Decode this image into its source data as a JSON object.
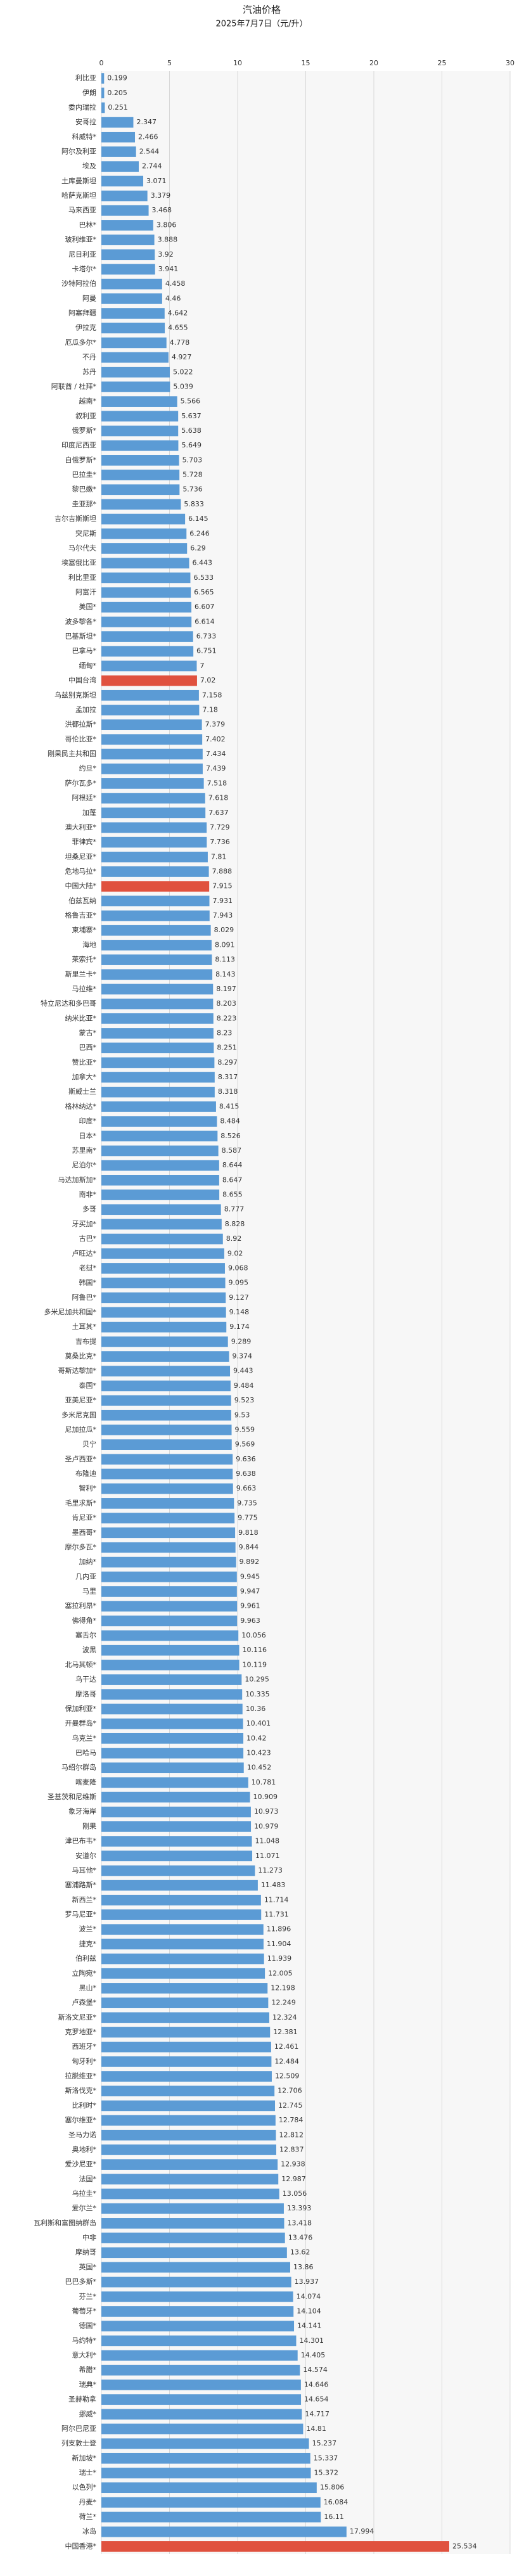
{
  "chart_data": {
    "type": "barh",
    "title": "汽油价格",
    "subtitle": "2025年7月7日（元/升）",
    "categories": [
      "利比亚",
      "伊朗",
      "委内瑞拉",
      "安哥拉",
      "科威特*",
      "阿尔及利亚",
      "埃及",
      "土库曼斯坦",
      "哈萨克斯坦",
      "马来西亚",
      "巴林*",
      "玻利维亚*",
      "尼日利亚",
      "卡塔尔*",
      "沙特阿拉伯",
      "阿曼",
      "阿塞拜疆",
      "伊拉克",
      "厄瓜多尔*",
      "不丹",
      "苏丹",
      "阿联酋 / 杜拜*",
      "越南*",
      "叙利亚",
      "俄罗斯*",
      "印度尼西亚",
      "白俄罗斯*",
      "巴拉圭*",
      "黎巴嫩*",
      "圭亚那*",
      "吉尔吉斯斯坦",
      "突尼斯",
      "马尔代夫",
      "埃塞俄比亚",
      "利比里亚",
      "阿富汗",
      "美国*",
      "波多黎各*",
      "巴基斯坦*",
      "巴拿马*",
      "缅甸*",
      "中国台湾",
      "乌兹别克斯坦",
      "孟加拉",
      "洪都拉斯*",
      "哥伦比亚*",
      "刚果民主共和国",
      "约旦*",
      "萨尔瓦多*",
      "阿根廷*",
      "加蓬",
      "澳大利亚*",
      "菲律宾*",
      "坦桑尼亚*",
      "危地马拉*",
      "中国大陆*",
      "伯兹瓦纳",
      "格鲁吉亚*",
      "柬埔寨*",
      "海地",
      "莱索托*",
      "斯里兰卡*",
      "马拉维*",
      "特立尼达和多巴哥",
      "纳米比亚*",
      "蒙古*",
      "巴西*",
      "赞比亚*",
      "加拿大*",
      "斯威士兰",
      "格林纳达*",
      "印度*",
      "日本*",
      "苏里南*",
      "尼泊尔*",
      "马达加斯加*",
      "南非*",
      "多哥",
      "牙买加*",
      "古巴*",
      "卢旺达*",
      "老挝*",
      "韩国*",
      "阿鲁巴*",
      "多米尼加共和国*",
      "土耳其*",
      "吉布提",
      "莫桑比克*",
      "哥斯达黎加*",
      "泰国*",
      "亚美尼亚*",
      "多米尼克国",
      "尼加拉瓜*",
      "贝宁",
      "圣卢西亚*",
      "布隆迪",
      "智利*",
      "毛里求斯*",
      "肯尼亚*",
      "墨西哥*",
      "摩尔多瓦*",
      "加纳*",
      "几内亚",
      "马里",
      "塞拉利昂*",
      "佛得角*",
      "塞舌尔",
      "波黑",
      "北马其顿*",
      "乌干达",
      "摩洛哥",
      "保加利亚*",
      "开曼群岛*",
      "乌克兰*",
      "巴哈马",
      "马绍尔群岛",
      "喀麦隆",
      "圣基茨和尼维斯",
      "象牙海岸",
      "刚果",
      "津巴布韦*",
      "安道尔",
      "马耳他*",
      "塞浦路斯*",
      "新西兰*",
      "罗马尼亚*",
      "波兰*",
      "捷克*",
      "伯利兹",
      "立陶宛*",
      "黑山*",
      "卢森堡*",
      "斯洛文尼亚*",
      "克罗地亚*",
      "西班牙*",
      "匈牙利*",
      "拉脱维亚*",
      "斯洛伐克*",
      "比利时*",
      "塞尔维亚*",
      "圣马力诺",
      "奥地利*",
      "爱沙尼亚*",
      "法国*",
      "乌拉圭*",
      "爱尔兰*",
      "瓦利斯和富图纳群岛",
      "中非",
      "摩纳哥",
      "英国*",
      "巴巴多斯*",
      "芬兰*",
      "葡萄牙*",
      "德国*",
      "马约特*",
      "意大利*",
      "希腊*",
      "瑞典*",
      "圣赫勒拿",
      "挪威*",
      "阿尔巴尼亚",
      "列支敦士登",
      "新加坡*",
      "瑞士*",
      "以色列*",
      "丹麦*",
      "荷兰*",
      "冰岛",
      "中国香港*"
    ],
    "values": [
      0.199,
      0.205,
      0.251,
      2.347,
      2.466,
      2.544,
      2.744,
      3.071,
      3.379,
      3.468,
      3.806,
      3.888,
      3.92,
      3.941,
      4.458,
      4.46,
      4.642,
      4.655,
      4.778,
      4.927,
      5.022,
      5.039,
      5.566,
      5.637,
      5.638,
      5.649,
      5.703,
      5.728,
      5.736,
      5.833,
      6.145,
      6.246,
      6.29,
      6.443,
      6.533,
      6.565,
      6.607,
      6.614,
      6.733,
      6.751,
      7,
      7.02,
      7.158,
      7.18,
      7.379,
      7.402,
      7.434,
      7.439,
      7.518,
      7.618,
      7.637,
      7.729,
      7.736,
      7.81,
      7.888,
      7.915,
      7.931,
      7.943,
      8.029,
      8.091,
      8.113,
      8.143,
      8.197,
      8.203,
      8.223,
      8.23,
      8.251,
      8.297,
      8.317,
      8.318,
      8.415,
      8.484,
      8.526,
      8.587,
      8.644,
      8.647,
      8.655,
      8.777,
      8.828,
      8.92,
      9.02,
      9.068,
      9.095,
      9.127,
      9.148,
      9.174,
      9.289,
      9.374,
      9.443,
      9.484,
      9.523,
      9.53,
      9.559,
      9.569,
      9.636,
      9.638,
      9.663,
      9.735,
      9.775,
      9.818,
      9.844,
      9.892,
      9.945,
      9.947,
      9.961,
      9.963,
      10.056,
      10.116,
      10.119,
      10.295,
      10.335,
      10.36,
      10.401,
      10.42,
      10.423,
      10.452,
      10.781,
      10.909,
      10.973,
      10.979,
      11.048,
      11.071,
      11.273,
      11.483,
      11.714,
      11.731,
      11.896,
      11.904,
      11.939,
      12.005,
      12.198,
      12.249,
      12.324,
      12.381,
      12.461,
      12.484,
      12.509,
      12.706,
      12.745,
      12.784,
      12.812,
      12.837,
      12.938,
      12.987,
      13.056,
      13.393,
      13.418,
      13.476,
      13.62,
      13.86,
      13.937,
      14.074,
      14.104,
      14.141,
      14.301,
      14.405,
      14.574,
      14.646,
      14.654,
      14.717,
      14.81,
      15.237,
      15.337,
      15.372,
      15.806,
      16.084,
      16.11,
      17.994,
      25.534
    ],
    "color": "#5b9bd5",
    "highlight_color": "#e0513e",
    "highlighted": [
      "中国台湾",
      "中国大陆*",
      "中国香港*"
    ],
    "xlim": [
      0,
      30
    ],
    "xticks": [
      0,
      5,
      10,
      15,
      20,
      25,
      30
    ],
    "grid": true
  }
}
